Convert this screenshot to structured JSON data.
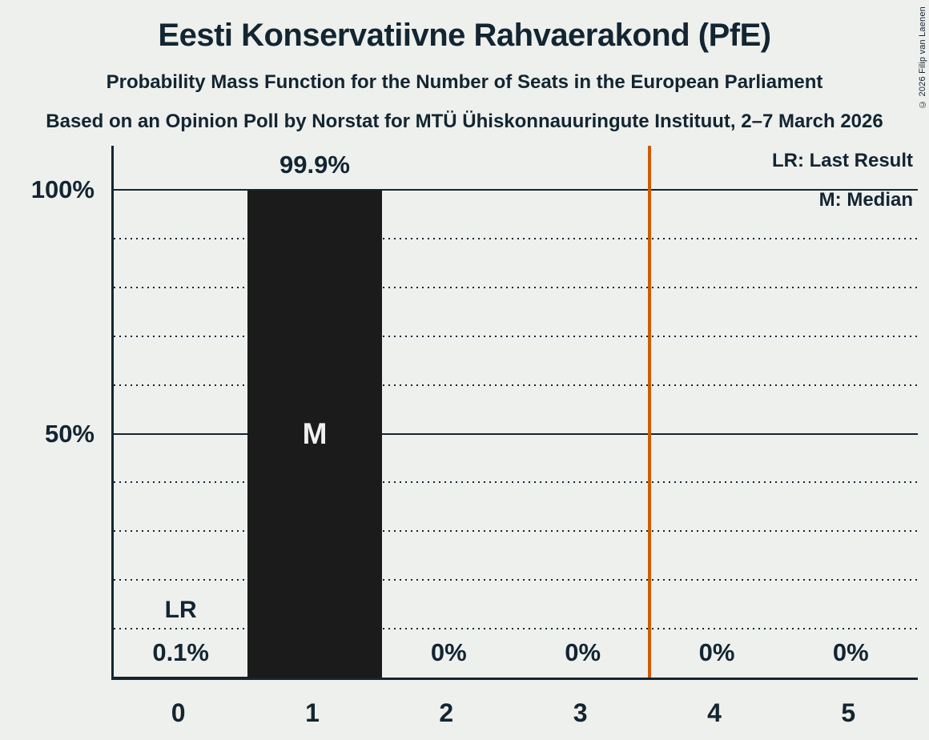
{
  "page": {
    "background": "#eef0ee",
    "ink": "#132531"
  },
  "header": {
    "title": "Eesti Konservatiivne Rahvaerakond (PfE)",
    "subtitle": "Probability Mass Function for the Number of Seats in the European Parliament",
    "source_line": "Based on an Opinion Poll by Norstat for MTÜ Ühiskonnauuringute Instituut, 2–7 March 2026"
  },
  "legend": {
    "lr": "LR: Last Result",
    "m": "M: Median"
  },
  "copyright": "© 2026 Filip van Laenen",
  "chart_data": {
    "type": "bar",
    "categories": [
      "0",
      "1",
      "2",
      "3",
      "4",
      "5"
    ],
    "values": [
      0.1,
      99.9,
      0,
      0,
      0,
      0
    ],
    "value_labels": [
      "0.1%",
      "99.9%",
      "0%",
      "0%",
      "0%",
      "0%"
    ],
    "ylim": [
      0,
      100
    ],
    "ytick_labels": {
      "50": "50%",
      "100": "100%"
    },
    "minor_grid_step_percent": 10,
    "grid": "dotted horizontal lines every 10%, solid lines at 50% and 100%",
    "legend_position": "top-right",
    "median": {
      "category": "1",
      "index": 1,
      "marker": "M"
    },
    "last_result": {
      "category": "0",
      "index": 0,
      "marker": "LR"
    },
    "lr_vline_x": 3.5,
    "colors": {
      "bar": "#1b1b1b",
      "bar_label": "#f0f0f0",
      "lr_line": "#ce5b00",
      "ink": "#132531",
      "background": "#eef0ee"
    }
  }
}
